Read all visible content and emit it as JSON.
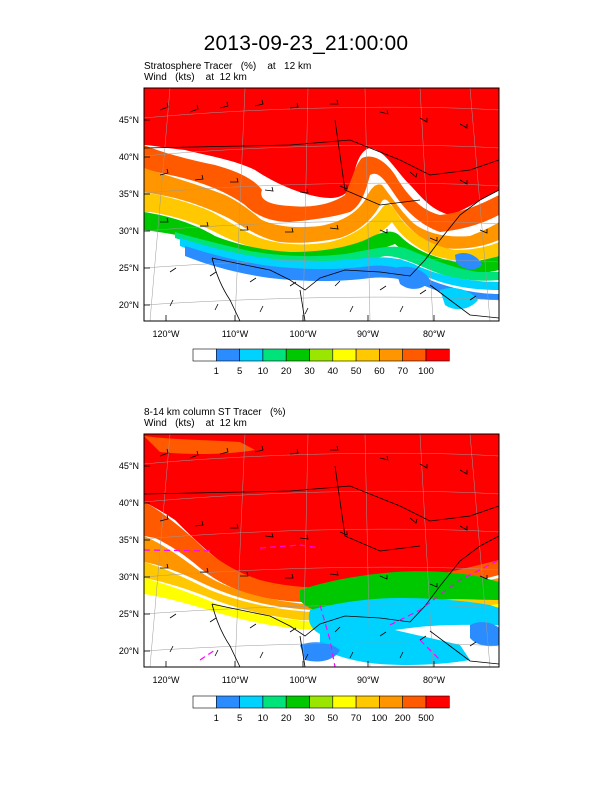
{
  "title": "2013-09-23_21:00:00",
  "panels": [
    {
      "title_line1": "Stratosphere Tracer   (%)    at   12 km",
      "title_line2": "Wind   (kts)    at  12 km",
      "lat_labels": [
        "45°N",
        "40°N",
        "35°N",
        "30°N",
        "25°N",
        "20°N"
      ],
      "lon_labels": [
        "120°W",
        "110°W",
        "100°W",
        "90°W",
        "80°W"
      ],
      "colorbar": {
        "labels": [
          "1",
          "5",
          "10",
          "20",
          "30",
          "40",
          "50",
          "60",
          "70",
          "100"
        ],
        "colors": [
          "#ffffff",
          "#2b8cff",
          "#00d2ff",
          "#00e27a",
          "#00c800",
          "#9ae600",
          "#ffff00",
          "#ffc800",
          "#ff9600",
          "#ff5a00",
          "#ff0000"
        ]
      }
    },
    {
      "title_line1": "8-14 km column ST Tracer   (%)",
      "title_line2": "Wind   (kts)    at  12 km",
      "lat_labels": [
        "45°N",
        "40°N",
        "35°N",
        "30°N",
        "25°N",
        "20°N"
      ],
      "lon_labels": [
        "120°W",
        "110°W",
        "100°W",
        "90°W",
        "80°W"
      ],
      "colorbar": {
        "labels": [
          "1",
          "5",
          "10",
          "20",
          "30",
          "50",
          "70",
          "100",
          "200",
          "500"
        ],
        "colors": [
          "#ffffff",
          "#2b8cff",
          "#00d2ff",
          "#00e27a",
          "#00c800",
          "#9ae600",
          "#ffff00",
          "#ffc800",
          "#ff9600",
          "#ff5a00",
          "#ff0000"
        ]
      }
    }
  ]
}
